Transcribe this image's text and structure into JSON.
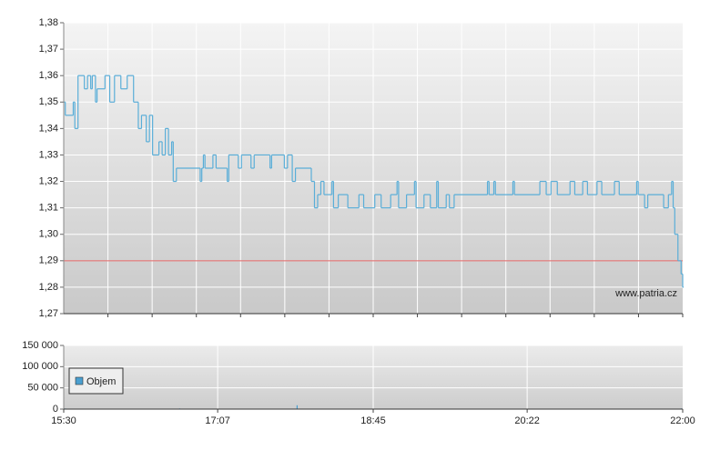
{
  "chart_data": [
    {
      "type": "line",
      "step": true,
      "color": "#5aaed8",
      "annotation": "www.patria.cz",
      "reference_line": 1.29,
      "reference_color": "#e06060",
      "x": [
        "15:30",
        "15:31",
        "15:36",
        "15:37",
        "15:39",
        "15:43",
        "15:45",
        "15:47",
        "15:48",
        "15:50",
        "15:51",
        "15:56",
        "15:59",
        "16:02",
        "16:06",
        "16:10",
        "16:14",
        "16:17",
        "16:19",
        "16:22",
        "16:24",
        "16:26",
        "16:30",
        "16:32",
        "16:34",
        "16:36",
        "16:38",
        "16:39",
        "16:41",
        "16:56",
        "16:57",
        "16:58",
        "16:59",
        "17:04",
        "17:06",
        "17:13",
        "17:14",
        "17:20",
        "17:22",
        "17:28",
        "17:30",
        "17:40",
        "17:41",
        "17:49",
        "17:51",
        "17:54",
        "17:56",
        "18:06",
        "18:08",
        "18:10",
        "18:12",
        "18:14",
        "18:19",
        "18:20",
        "18:23",
        "18:29",
        "18:36",
        "18:39",
        "18:46",
        "18:50",
        "18:56",
        "19:00",
        "19:01",
        "19:06",
        "19:11",
        "19:12",
        "19:17",
        "19:21",
        "19:25",
        "19:26",
        "19:31",
        "19:33",
        "19:36",
        "19:57",
        "19:58",
        "20:01",
        "20:02",
        "20:13",
        "20:14",
        "20:30",
        "20:34",
        "20:37",
        "20:41",
        "20:49",
        "20:52",
        "20:57",
        "21:00",
        "21:06",
        "21:09",
        "21:17",
        "21:20",
        "21:31",
        "21:32",
        "21:36",
        "21:38",
        "21:48",
        "21:51",
        "21:53",
        "21:54",
        "21:55",
        "21:57",
        "21:59",
        "22:00"
      ],
      "values": [
        1.35,
        1.345,
        1.35,
        1.34,
        1.36,
        1.355,
        1.36,
        1.355,
        1.36,
        1.35,
        1.355,
        1.36,
        1.35,
        1.36,
        1.355,
        1.36,
        1.35,
        1.34,
        1.345,
        1.335,
        1.345,
        1.33,
        1.335,
        1.33,
        1.34,
        1.33,
        1.335,
        1.32,
        1.325,
        1.32,
        1.325,
        1.33,
        1.325,
        1.33,
        1.325,
        1.32,
        1.33,
        1.325,
        1.33,
        1.325,
        1.33,
        1.325,
        1.33,
        1.325,
        1.33,
        1.32,
        1.325,
        1.32,
        1.31,
        1.315,
        1.32,
        1.315,
        1.32,
        1.31,
        1.315,
        1.31,
        1.315,
        1.31,
        1.315,
        1.31,
        1.315,
        1.32,
        1.31,
        1.315,
        1.32,
        1.31,
        1.315,
        1.31,
        1.32,
        1.31,
        1.315,
        1.31,
        1.315,
        1.32,
        1.315,
        1.32,
        1.315,
        1.32,
        1.315,
        1.32,
        1.315,
        1.32,
        1.315,
        1.32,
        1.315,
        1.32,
        1.315,
        1.32,
        1.315,
        1.32,
        1.315,
        1.32,
        1.315,
        1.31,
        1.315,
        1.31,
        1.315,
        1.32,
        1.31,
        1.3,
        1.29,
        1.285,
        1.28
      ],
      "xlim": [
        "15:30",
        "22:00"
      ],
      "ylim": [
        1.27,
        1.38
      ],
      "yticks": [
        {
          "value": 1.27,
          "label": "1,27"
        },
        {
          "value": 1.28,
          "label": "1,28"
        },
        {
          "value": 1.29,
          "label": "1,29"
        },
        {
          "value": 1.3,
          "label": "1,30"
        },
        {
          "value": 1.31,
          "label": "1,31"
        },
        {
          "value": 1.32,
          "label": "1,32"
        },
        {
          "value": 1.33,
          "label": "1,33"
        },
        {
          "value": 1.34,
          "label": "1,34"
        },
        {
          "value": 1.35,
          "label": "1,35"
        },
        {
          "value": 1.36,
          "label": "1,36"
        },
        {
          "value": 1.37,
          "label": "1,37"
        },
        {
          "value": 1.38,
          "label": "1,38"
        }
      ],
      "grid": true
    },
    {
      "type": "bar",
      "series": [
        {
          "name": "Objem",
          "color": "#4a9fd0",
          "x": [
            "15:31",
            "16:43",
            "17:57",
            "21:59"
          ],
          "values": [
            1500,
            1500,
            9000,
            1500
          ]
        }
      ],
      "xlim": [
        "15:30",
        "22:00"
      ],
      "xticks": [
        "15:30",
        "17:07",
        "18:45",
        "20:22",
        "22:00"
      ],
      "ylim": [
        0,
        150000
      ],
      "yticks": [
        0,
        {
          "value": 50000,
          "label": "50 000"
        },
        {
          "value": 100000,
          "label": "100 000"
        },
        {
          "value": 150000,
          "label": "150 000"
        }
      ],
      "grid": true
    }
  ]
}
